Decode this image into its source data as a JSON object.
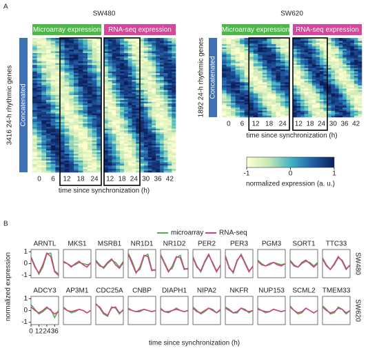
{
  "panel_a": {
    "label": "A",
    "heatmaps": [
      {
        "title": "SW480",
        "y_label": "3416 24-h rhythmic genes",
        "group_label": "Concatenated",
        "blocks": [
          {
            "name": "Microarray expression",
            "color": "#4db748",
            "xticks": [
              0,
              6,
              12,
              18,
              24
            ]
          },
          {
            "name": "RNA-seq expression",
            "color": "#d5479a",
            "xticks": [
              12,
              18,
              24,
              30,
              36,
              42
            ]
          }
        ],
        "box": [
          12,
          24
        ],
        "x_label": "time since synchronization (h)"
      },
      {
        "title": "SW620",
        "y_label": "1892 24-h rhythmic genes",
        "group_label": "Concatenated",
        "blocks": [
          {
            "name": "Microarray expression",
            "color": "#4db748",
            "xticks": [
              0,
              6,
              12,
              18,
              24
            ]
          },
          {
            "name": "RNA-seq expression",
            "color": "#d5479a",
            "xticks": [
              12,
              18,
              24,
              30,
              36,
              42
            ]
          }
        ],
        "box": [
          12,
          24
        ],
        "x_label": "time since synchronization (h)"
      }
    ],
    "colorbar": {
      "label": "normalized expression (a. u.)",
      "lim": [
        -1,
        1
      ],
      "ticks": [
        -1,
        0,
        1
      ],
      "colors": [
        "#ffffd0",
        "#c7e9b4",
        "#41b6c4",
        "#225ea8",
        "#0c1f5c"
      ]
    }
  },
  "panel_b": {
    "label": "B",
    "type": "line",
    "series_names": [
      "microarray",
      "RNA-seq"
    ],
    "colors": [
      "#4caf50",
      "#d6407f"
    ],
    "x": [
      0,
      6,
      12,
      18,
      24,
      30,
      36,
      42
    ],
    "xlim": [
      0,
      42
    ],
    "ylim": [
      -1.2,
      1.2
    ],
    "xticks": [
      0,
      12,
      24,
      36
    ],
    "yticks": [
      -1,
      0,
      1
    ],
    "y_label": "normalized expression",
    "x_label": "time since synchronization (h)",
    "rows": [
      {
        "name": "SW480",
        "genes": [
          {
            "name": "ARNTL",
            "series": [
              [
                0.6,
                -0.2,
                -0.9,
                -0.3,
                0.8,
                0.9,
                -0.6,
                -0.9
              ],
              [
                0.5,
                -0.3,
                -0.8,
                -0.1,
                0.9,
                0.6,
                -0.7,
                -1.0
              ]
            ]
          },
          {
            "name": "MKS1",
            "series": [
              [
                0.1,
                0,
                -0.2,
                -0.1,
                0.1,
                0,
                -0.1,
                0
              ],
              [
                0.2,
                0,
                -0.3,
                0,
                0.2,
                -0.1,
                -0.3,
                0.1
              ]
            ]
          },
          {
            "name": "MSRB1",
            "series": [
              [
                0.3,
                -0.1,
                -0.4,
                0,
                0.3,
                0.1,
                -0.3,
                0.2
              ],
              [
                0.2,
                -0.2,
                -0.3,
                0.1,
                0.4,
                -0.1,
                -0.4,
                0.1
              ]
            ]
          },
          {
            "name": "NR1D1",
            "series": [
              [
                0.9,
                0.2,
                -0.7,
                -0.5,
                0.6,
                0.8,
                -0.5,
                -0.6
              ],
              [
                0.8,
                0,
                -0.8,
                -0.3,
                0.7,
                0.6,
                -0.6,
                -0.5
              ]
            ]
          },
          {
            "name": "NR1D2",
            "series": [
              [
                0.8,
                0.1,
                -0.6,
                -0.4,
                0.5,
                0.7,
                -0.4,
                -0.5
              ],
              [
                0.7,
                0,
                -0.7,
                -0.2,
                0.6,
                0.5,
                -0.5,
                -0.4
              ]
            ]
          },
          {
            "name": "PER2",
            "series": [
              [
                0.6,
                -0.2,
                -0.7,
                0.1,
                0.7,
                0.1,
                -0.6,
                -0.2
              ],
              [
                0.5,
                -0.3,
                -0.6,
                0.2,
                0.8,
                0,
                -0.7,
                -0.1
              ]
            ]
          },
          {
            "name": "PER3",
            "series": [
              [
                0.7,
                -0.3,
                -0.8,
                0.2,
                0.8,
                0.1,
                -0.6,
                -0.3
              ],
              [
                0.6,
                -0.4,
                -0.7,
                0.3,
                0.7,
                0,
                -0.7,
                -0.2
              ]
            ]
          },
          {
            "name": "PGM3",
            "series": [
              [
                0.3,
                0,
                -0.2,
                -0.1,
                0.1,
                0,
                -0.1,
                0
              ],
              [
                0.2,
                -0.1,
                -0.2,
                0,
                0.1,
                -0.1,
                -0.2,
                0
              ]
            ]
          },
          {
            "name": "SORT1",
            "series": [
              [
                0.3,
                -0.1,
                -0.3,
                0,
                0.2,
                0.1,
                -0.2,
                0.1
              ],
              [
                0.2,
                -0.2,
                -0.3,
                0.1,
                0.3,
                0,
                -0.3,
                0
              ]
            ]
          },
          {
            "name": "TTC33",
            "series": [
              [
                0.5,
                -0.1,
                -0.5,
                -0.1,
                0.5,
                0.3,
                -0.4,
                -0.2
              ],
              [
                0.4,
                -0.2,
                -0.5,
                0,
                0.6,
                0.2,
                -0.5,
                -0.1
              ]
            ]
          }
        ]
      },
      {
        "name": "SW620",
        "genes": [
          {
            "name": "ADCY3",
            "series": [
              [
                0.5,
                0.1,
                -0.3,
                -0.1,
                0.2,
                0.1,
                -0.6,
                0
              ],
              [
                0.3,
                0,
                -0.2,
                0,
                0.3,
                0,
                -0.3,
                -0.1
              ]
            ]
          },
          {
            "name": "AP3M1",
            "series": [
              [
                0.3,
                0,
                -0.2,
                -0.1,
                0.1,
                0,
                -0.2,
                0
              ],
              [
                0.2,
                0,
                -0.1,
                0,
                0.1,
                0,
                -0.2,
                0
              ]
            ]
          },
          {
            "name": "CDC25A",
            "series": [
              [
                0.6,
                0.2,
                -0.3,
                -0.5,
                0.3,
                0.2,
                -0.3,
                0.1
              ],
              [
                0.5,
                0.3,
                -0.2,
                -0.4,
                0.2,
                0.3,
                -0.2,
                0
              ]
            ]
          },
          {
            "name": "CNBP",
            "series": [
              [
                0.2,
                0,
                -0.1,
                -0.1,
                0.1,
                0,
                -0.1,
                0
              ],
              [
                0.1,
                0,
                -0.1,
                0,
                0.1,
                0,
                -0.1,
                0
              ]
            ]
          },
          {
            "name": "DIAPH1",
            "series": [
              [
                0.2,
                -0.1,
                -0.2,
                0,
                0.2,
                0,
                -0.1,
                0
              ],
              [
                0.1,
                -0.1,
                -0.1,
                0,
                0.1,
                0,
                -0.1,
                0
              ]
            ]
          },
          {
            "name": "NIPA2",
            "series": [
              [
                0.3,
                0,
                -0.3,
                -0.1,
                0.2,
                0.1,
                -0.2,
                0
              ],
              [
                0.2,
                -0.1,
                -0.2,
                0,
                0.2,
                0,
                -0.2,
                0.1
              ]
            ]
          },
          {
            "name": "NKFR",
            "series": [
              [
                0.3,
                0.1,
                -0.2,
                -0.2,
                0.2,
                0.1,
                -0.2,
                0
              ],
              [
                0.2,
                0,
                -0.2,
                -0.1,
                0.2,
                0,
                -0.1,
                0
              ]
            ]
          },
          {
            "name": "NUP153",
            "series": [
              [
                0.2,
                0,
                -0.2,
                -0.1,
                0.1,
                0,
                -0.1,
                0
              ],
              [
                0.1,
                0,
                -0.1,
                -0.1,
                0.1,
                0,
                -0.1,
                0
              ]
            ]
          },
          {
            "name": "SCML2",
            "series": [
              [
                0.4,
                0,
                -0.3,
                -0.2,
                0.2,
                0,
                -0.2,
                0
              ],
              [
                0.3,
                0,
                -0.2,
                -0.1,
                0.2,
                0,
                -0.2,
                0
              ]
            ]
          },
          {
            "name": "TMEM33",
            "series": [
              [
                0.4,
                0.1,
                -0.3,
                -0.2,
                0.3,
                0.1,
                -0.3,
                0
              ],
              [
                0.3,
                0,
                -0.2,
                -0.1,
                0.2,
                0.1,
                -0.2,
                0
              ]
            ]
          }
        ]
      }
    ]
  }
}
